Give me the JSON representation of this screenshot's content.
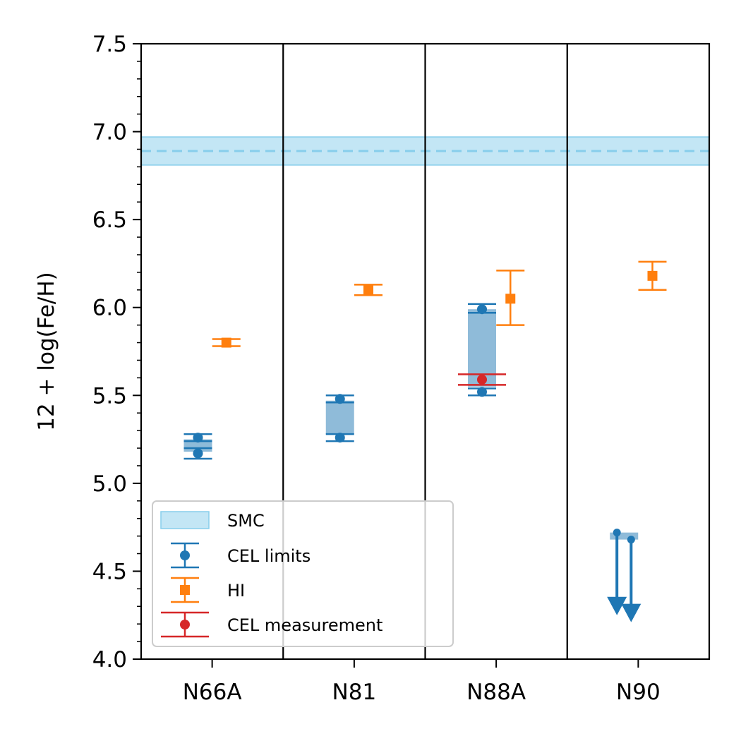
{
  "chart_data": {
    "type": "scatter",
    "ylabel": "12 + log(Fe/H)",
    "xlabel": "",
    "ylim": [
      4.0,
      7.5
    ],
    "yticks_major": [
      "4.0",
      "4.5",
      "5.0",
      "5.5",
      "6.0",
      "6.5",
      "7.0",
      "7.5"
    ],
    "categories": [
      "N66A",
      "N81",
      "N88A",
      "N90"
    ],
    "smc_band": {
      "center": 6.89,
      "low": 6.81,
      "high": 6.97
    },
    "series": [
      {
        "name": "CEL limits",
        "color": "#1f77b4",
        "points": [
          {
            "category": "N66A",
            "offset": -0.1,
            "y": 5.26,
            "err_low": 0.02,
            "err_high": 0.02
          },
          {
            "category": "N66A",
            "offset": -0.1,
            "y": 5.17,
            "err_low": 0.03,
            "err_high": 0.03
          },
          {
            "category": "N81",
            "offset": -0.1,
            "y": 5.48,
            "err_low": 0.02,
            "err_high": 0.02
          },
          {
            "category": "N81",
            "offset": -0.1,
            "y": 5.26,
            "err_low": 0.02,
            "err_high": 0.02
          },
          {
            "category": "N88A",
            "offset": -0.1,
            "y": 5.99,
            "err_low": 0.02,
            "err_high": 0.03
          },
          {
            "category": "N88A",
            "offset": -0.1,
            "y": 5.52,
            "err_low": 0.02,
            "err_high": 0.02
          }
        ],
        "upper_limits": [
          {
            "category": "N90",
            "offset": -0.15,
            "y": 4.72,
            "arrow_to": 4.25
          },
          {
            "category": "N90",
            "offset": -0.05,
            "y": 4.68,
            "arrow_to": 4.21
          }
        ],
        "ranges": [
          {
            "category": "N66A",
            "low": 5.18,
            "high": 5.25
          },
          {
            "category": "N81",
            "low": 5.28,
            "high": 5.47
          },
          {
            "category": "N88A",
            "low": 5.55,
            "high": 5.99
          },
          {
            "category": "N90",
            "low": 4.68,
            "high": 4.72
          }
        ]
      },
      {
        "name": "HI",
        "color": "#ff7f0e",
        "points": [
          {
            "category": "N66A",
            "offset": 0.1,
            "y": 5.8,
            "err_low": 0.02,
            "err_high": 0.02
          },
          {
            "category": "N81",
            "offset": 0.1,
            "y": 6.1,
            "err_low": 0.03,
            "err_high": 0.03
          },
          {
            "category": "N88A",
            "offset": 0.1,
            "y": 6.05,
            "err_low": 0.15,
            "err_high": 0.16
          },
          {
            "category": "N90",
            "offset": 0.1,
            "y": 6.18,
            "err_low": 0.08,
            "err_high": 0.08
          }
        ]
      },
      {
        "name": "CEL measurement",
        "color": "#d62728",
        "points": [
          {
            "category": "N88A",
            "offset": -0.1,
            "y": 5.59,
            "err_low": 0.03,
            "err_high": 0.03
          }
        ]
      }
    ],
    "legend": {
      "placement": "lower-left",
      "entries": [
        "SMC",
        "CEL limits",
        "HI",
        "CEL measurement"
      ]
    },
    "grid": false
  }
}
